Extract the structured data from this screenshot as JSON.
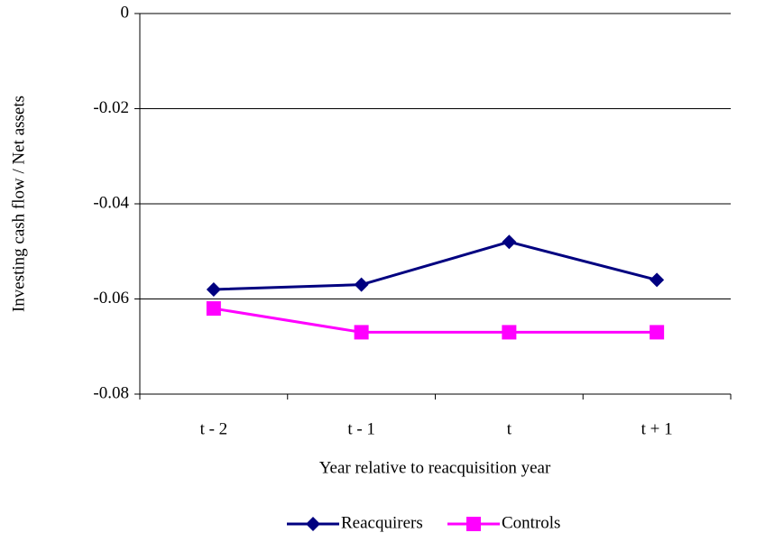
{
  "chart_data": {
    "type": "line",
    "y_label": "Investing cash flow / Net assets",
    "x_label": "Year relative to reacquisition year",
    "categories": [
      "t - 2",
      "t - 1",
      "t",
      "t + 1"
    ],
    "series": [
      {
        "name": "Reacquirers",
        "color": "#000080",
        "marker": "diamond",
        "values": [
          -0.058,
          -0.057,
          -0.048,
          -0.056
        ]
      },
      {
        "name": "Controls",
        "color": "#ff00ff",
        "marker": "square",
        "values": [
          -0.062,
          -0.067,
          -0.067,
          -0.067
        ]
      }
    ],
    "ylim": [
      -0.08,
      0
    ],
    "yticks": [
      0,
      -0.02,
      -0.04,
      -0.06,
      -0.08
    ],
    "grid": true
  }
}
